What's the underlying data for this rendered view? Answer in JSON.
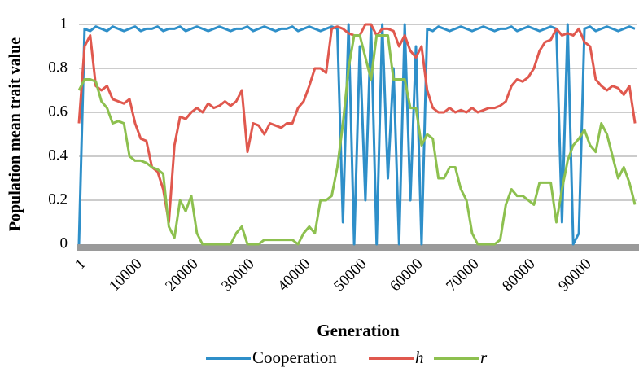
{
  "chart_data": {
    "type": "line",
    "ylabel": "Population mean trait value",
    "xlabel": "Generation",
    "x": [
      1,
      1000,
      2000,
      3000,
      4000,
      5000,
      6000,
      7000,
      8000,
      9000,
      10000,
      11000,
      12000,
      13000,
      14000,
      15000,
      16000,
      17000,
      18000,
      19000,
      20000,
      21000,
      22000,
      23000,
      24000,
      25000,
      26000,
      27000,
      28000,
      29000,
      30000,
      31000,
      32000,
      33000,
      34000,
      35000,
      36000,
      37000,
      38000,
      39000,
      40000,
      41000,
      42000,
      43000,
      44000,
      45000,
      46000,
      47000,
      48000,
      49000,
      50000,
      51000,
      52000,
      53000,
      54000,
      55000,
      56000,
      57000,
      58000,
      59000,
      60000,
      61000,
      62000,
      63000,
      64000,
      65000,
      66000,
      67000,
      68000,
      69000,
      70000,
      71000,
      72000,
      73000,
      74000,
      75000,
      76000,
      77000,
      78000,
      79000,
      80000,
      81000,
      82000,
      83000,
      84000,
      85000,
      86000,
      87000,
      88000,
      89000,
      90000,
      91000,
      92000,
      93000,
      94000,
      95000,
      96000,
      97000,
      98000,
      99000
    ],
    "series": [
      {
        "name": "Cooperation",
        "color": "#2e8fc9",
        "values": [
          0,
          0.98,
          0.97,
          0.99,
          0.98,
          0.97,
          0.99,
          0.98,
          0.97,
          0.98,
          0.99,
          0.97,
          0.98,
          0.98,
          0.99,
          0.97,
          0.98,
          0.98,
          0.99,
          0.97,
          0.98,
          0.99,
          0.98,
          0.97,
          0.98,
          0.99,
          0.98,
          0.97,
          0.98,
          0.98,
          0.99,
          0.97,
          0.98,
          0.99,
          0.98,
          0.97,
          0.98,
          0.98,
          0.99,
          0.97,
          0.98,
          0.99,
          0.98,
          0.97,
          0.98,
          0.99,
          0.98,
          0.1,
          1,
          0,
          0.9,
          0.2,
          1,
          0,
          1,
          0.3,
          0.8,
          0,
          1,
          0.2,
          0.9,
          0,
          0.98,
          0.97,
          0.99,
          0.98,
          0.97,
          0.98,
          0.99,
          0.98,
          0.97,
          0.98,
          0.99,
          0.98,
          0.97,
          0.98,
          0.98,
          0.99,
          0.97,
          0.98,
          0.99,
          0.98,
          0.97,
          0.98,
          0.99,
          0.98,
          0.1,
          1,
          0,
          0.05,
          0.98,
          0.99,
          0.97,
          0.98,
          0.99,
          0.98,
          0.97,
          0.98,
          0.99,
          0.98
        ]
      },
      {
        "name": "h",
        "color": "#e0584e",
        "values": [
          0.55,
          0.9,
          0.95,
          0.72,
          0.7,
          0.72,
          0.66,
          0.65,
          0.64,
          0.66,
          0.55,
          0.48,
          0.47,
          0.35,
          0.33,
          0.25,
          0.1,
          0.45,
          0.58,
          0.57,
          0.6,
          0.62,
          0.6,
          0.64,
          0.62,
          0.63,
          0.65,
          0.63,
          0.65,
          0.7,
          0.42,
          0.55,
          0.54,
          0.5,
          0.55,
          0.54,
          0.53,
          0.55,
          0.55,
          0.62,
          0.65,
          0.72,
          0.8,
          0.8,
          0.78,
          0.98,
          0.99,
          0.98,
          0.96,
          0.95,
          0.95,
          1,
          1,
          0.95,
          0.98,
          0.98,
          0.97,
          0.9,
          0.95,
          0.88,
          0.85,
          0.9,
          0.7,
          0.62,
          0.6,
          0.6,
          0.62,
          0.6,
          0.61,
          0.6,
          0.62,
          0.6,
          0.61,
          0.62,
          0.62,
          0.63,
          0.65,
          0.72,
          0.75,
          0.74,
          0.76,
          0.8,
          0.88,
          0.92,
          0.93,
          0.98,
          0.95,
          0.96,
          0.95,
          0.98,
          0.92,
          0.9,
          0.75,
          0.72,
          0.7,
          0.72,
          0.71,
          0.68,
          0.72,
          0.55
        ]
      },
      {
        "name": "r",
        "color": "#8dc04f",
        "values": [
          0.7,
          0.75,
          0.75,
          0.74,
          0.65,
          0.62,
          0.55,
          0.56,
          0.55,
          0.4,
          0.38,
          0.38,
          0.37,
          0.35,
          0.34,
          0.32,
          0.08,
          0.03,
          0.2,
          0.15,
          0.22,
          0.05,
          0,
          0,
          0,
          0,
          0,
          0,
          0.05,
          0.08,
          0,
          0,
          0,
          0.02,
          0.02,
          0.02,
          0.02,
          0.02,
          0.02,
          0,
          0.05,
          0.08,
          0.05,
          0.2,
          0.2,
          0.22,
          0.35,
          0.55,
          0.8,
          0.95,
          0.95,
          0.85,
          0.75,
          0.95,
          0.95,
          0.95,
          0.75,
          0.75,
          0.75,
          0.62,
          0.62,
          0.45,
          0.5,
          0.48,
          0.3,
          0.3,
          0.35,
          0.35,
          0.25,
          0.2,
          0.05,
          0,
          0,
          0,
          0,
          0.02,
          0.18,
          0.25,
          0.22,
          0.22,
          0.2,
          0.18,
          0.28,
          0.28,
          0.28,
          0.1,
          0.25,
          0.38,
          0.45,
          0.48,
          0.52,
          0.45,
          0.42,
          0.55,
          0.5,
          0.4,
          0.3,
          0.35,
          0.28,
          0.18
        ]
      }
    ],
    "xlim": [
      1,
      100000
    ],
    "xticks": [
      1,
      10000,
      20000,
      30000,
      40000,
      50000,
      60000,
      70000,
      80000,
      90000
    ],
    "ylim": [
      0,
      1
    ],
    "yticks": [
      0,
      0.2,
      0.4,
      0.6,
      0.8,
      1
    ],
    "grid": true
  }
}
